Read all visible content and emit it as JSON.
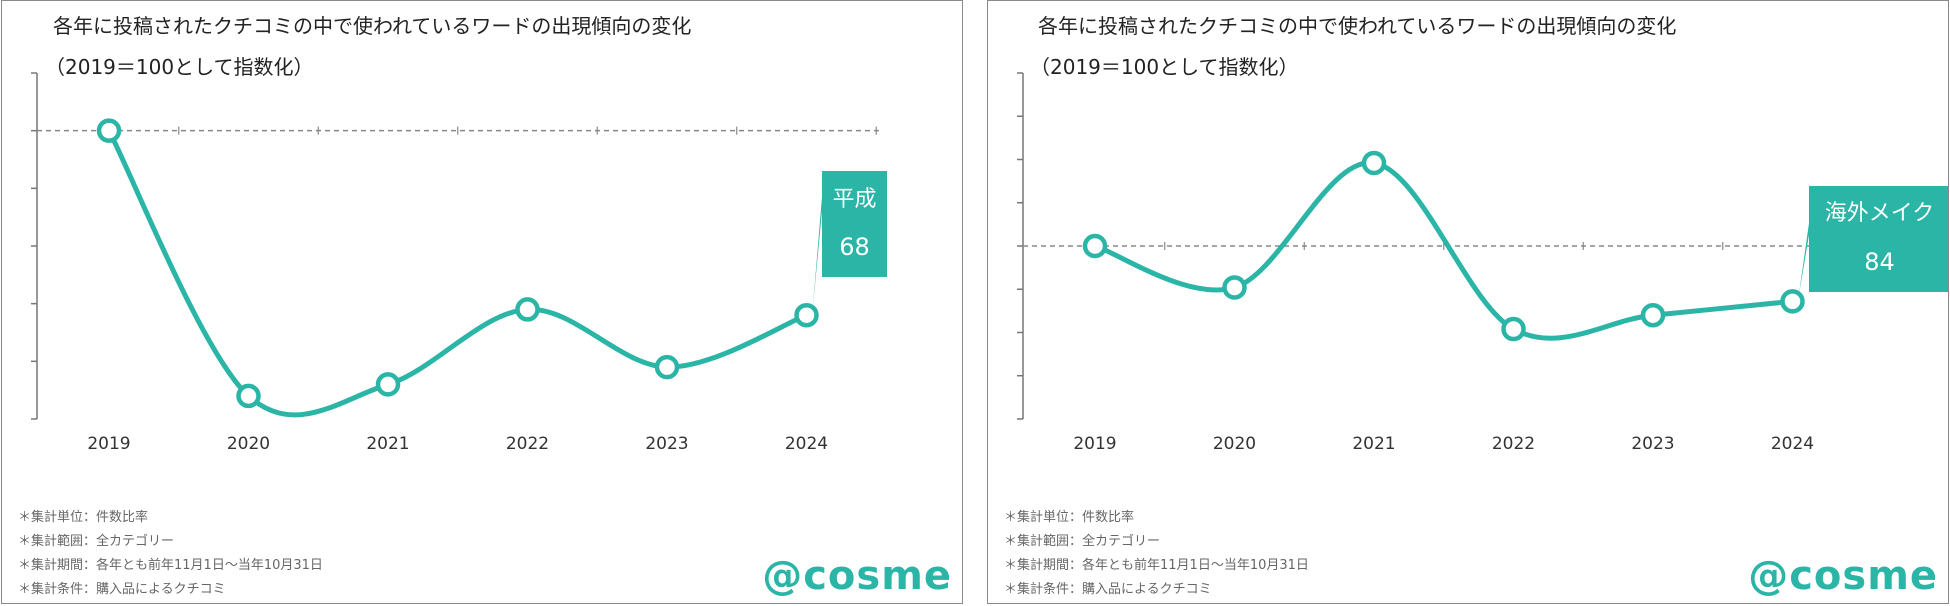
{
  "colors": {
    "accent": "#2bb5a6",
    "axis": "#777777",
    "text": "#222222",
    "note": "#666666"
  },
  "notes": [
    "＊集計単位：件数比率",
    "＊集計範囲：全カテゴリー",
    "＊集計期間：各年とも前年11月1日〜当年10月31日",
    "＊集計条件：購入品によるクチコミ"
  ],
  "logo": "@cosme",
  "chart_data": [
    {
      "type": "line",
      "title": "各年に投稿されたクチコミの中で使われているワードの出現傾向の変化",
      "subtitle": "（2019＝100として指数化）",
      "categories": [
        "2019",
        "2020",
        "2021",
        "2022",
        "2023",
        "2024"
      ],
      "series": [
        {
          "name": "平成",
          "values": [
            100,
            54,
            56,
            69,
            59,
            68
          ]
        }
      ],
      "ylim": [
        50,
        110
      ],
      "baseline": 100,
      "callout": {
        "label": "平成",
        "value": "68"
      },
      "xlabel": "",
      "ylabel": ""
    },
    {
      "type": "line",
      "title": "各年に投稿されたクチコミの中で使われているワードの出現傾向の変化",
      "subtitle": "（2019＝100として指数化）",
      "categories": [
        "2019",
        "2020",
        "2021",
        "2022",
        "2023",
        "2024"
      ],
      "series": [
        {
          "name": "海外メイク",
          "values": [
            100,
            88,
            124,
            76,
            80,
            84
          ]
        }
      ],
      "ylim": [
        50,
        150
      ],
      "baseline": 100,
      "callout": {
        "label": "海外メイク",
        "value": "84"
      },
      "xlabel": "",
      "ylabel": ""
    }
  ]
}
